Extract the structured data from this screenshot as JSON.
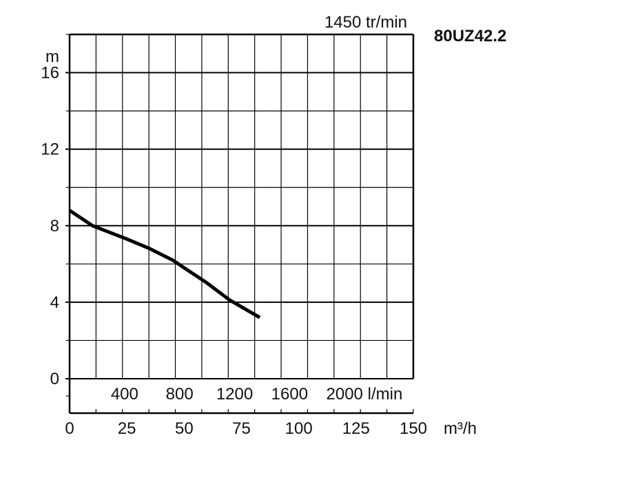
{
  "chart_data": {
    "type": "line",
    "title": "1450 tr/min",
    "model": "80UZ42.2",
    "ylabel": "m",
    "ylim": [
      0,
      18
    ],
    "yticks": [
      0,
      4,
      8,
      12,
      16
    ],
    "x_m3h_label": "m³/h",
    "x_m3h_lim": [
      0,
      150
    ],
    "x_m3h_ticks": [
      0,
      25,
      50,
      75,
      100,
      125,
      150
    ],
    "x_lmin_ticks": [
      400,
      800,
      1200,
      1600,
      2000
    ],
    "x_lmin_unit": "l/min",
    "grid": true,
    "series": [
      {
        "x": [
          0,
          10,
          25,
          35,
          45,
          50,
          60,
          70,
          83
        ],
        "y": [
          8.8,
          8.0,
          7.3,
          6.8,
          6.2,
          5.8,
          5.0,
          4.1,
          3.2
        ]
      }
    ]
  }
}
